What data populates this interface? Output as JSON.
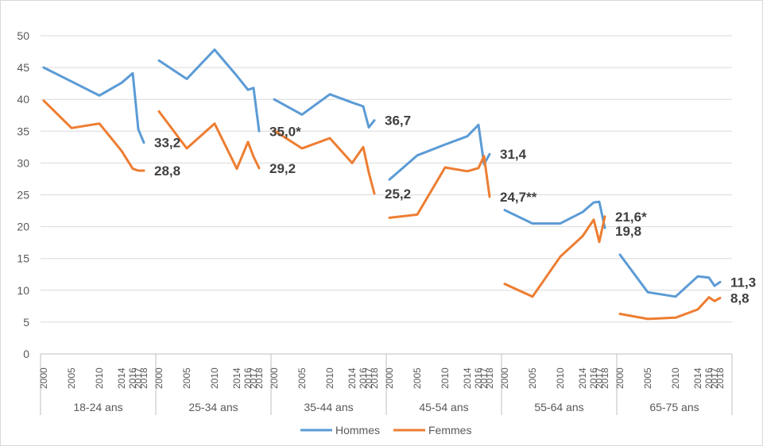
{
  "chart_data": {
    "type": "line",
    "title": "",
    "xlabel": "",
    "ylabel": "",
    "ylim": [
      0,
      50
    ],
    "yticks": [
      0,
      5,
      10,
      15,
      20,
      25,
      30,
      35,
      40,
      45,
      50
    ],
    "grid": true,
    "legend_position": "bottom",
    "colors": {
      "Hommes": "#5b9bd5",
      "Femmes": "#ed7d31"
    },
    "years": [
      "2000",
      "2005",
      "2010",
      "2014",
      "2016",
      "2017",
      "2018"
    ],
    "year_values": [
      2000,
      2005,
      2010,
      2014,
      2016,
      2017,
      2018
    ],
    "groups": [
      {
        "name": "18-24 ans",
        "series": [
          {
            "name": "Hommes",
            "values": [
              45.0,
              42.8,
              40.6,
              42.6,
              44.1,
              35.3,
              33.2
            ]
          },
          {
            "name": "Femmes",
            "values": [
              39.8,
              35.5,
              36.2,
              31.9,
              29.1,
              28.8,
              28.8
            ]
          }
        ],
        "labels": [
          {
            "series": "Hommes",
            "text": "33,2"
          },
          {
            "series": "Femmes",
            "text": "28,8"
          }
        ]
      },
      {
        "name": "25-34 ans",
        "series": [
          {
            "name": "Hommes",
            "values": [
              46.1,
              43.2,
              47.8,
              43.7,
              41.5,
              41.8,
              35.0
            ]
          },
          {
            "name": "Femmes",
            "values": [
              38.1,
              32.3,
              36.2,
              29.1,
              33.3,
              31.0,
              29.2
            ]
          }
        ],
        "labels": [
          {
            "series": "Hommes",
            "text": "35,0*"
          },
          {
            "series": "Femmes",
            "text": "29,2"
          }
        ]
      },
      {
        "name": "35-44 ans",
        "series": [
          {
            "name": "Hommes",
            "values": [
              40.0,
              37.6,
              40.8,
              39.5,
              38.9,
              35.6,
              36.7
            ]
          },
          {
            "name": "Femmes",
            "values": [
              35.1,
              32.3,
              33.9,
              30.0,
              32.5,
              28.5,
              25.2
            ]
          }
        ],
        "labels": [
          {
            "series": "Hommes",
            "text": "36,7"
          },
          {
            "series": "Femmes",
            "text": "25,2"
          }
        ]
      },
      {
        "name": "45-54 ans",
        "series": [
          {
            "name": "Hommes",
            "values": [
              27.4,
              31.2,
              32.9,
              34.2,
              36.0,
              29.8,
              31.4
            ]
          },
          {
            "name": "Femmes",
            "values": [
              21.4,
              21.9,
              29.3,
              28.7,
              29.2,
              31.1,
              24.7
            ]
          }
        ],
        "labels": [
          {
            "series": "Hommes",
            "text": "31,4"
          },
          {
            "series": "Femmes",
            "text": "24,7**"
          }
        ]
      },
      {
        "name": "55-64 ans",
        "series": [
          {
            "name": "Hommes",
            "values": [
              22.6,
              20.5,
              20.5,
              22.3,
              23.8,
              23.9,
              19.8
            ]
          },
          {
            "name": "Femmes",
            "values": [
              11.0,
              9.0,
              15.3,
              18.5,
              21.1,
              17.6,
              21.6
            ]
          }
        ],
        "labels": [
          {
            "series": "Femmes",
            "text": "21,6*"
          },
          {
            "series": "Hommes",
            "text": "19,8"
          }
        ]
      },
      {
        "name": "65-75 ans",
        "series": [
          {
            "name": "Hommes",
            "values": [
              15.6,
              9.7,
              9.0,
              12.2,
              12.0,
              10.7,
              11.3
            ]
          },
          {
            "name": "Femmes",
            "values": [
              6.3,
              5.5,
              5.7,
              7.0,
              8.9,
              8.3,
              8.8
            ]
          }
        ],
        "labels": [
          {
            "series": "Hommes",
            "text": "11,3"
          },
          {
            "series": "Femmes",
            "text": "8,8"
          }
        ]
      }
    ],
    "legend": [
      "Hommes",
      "Femmes"
    ]
  }
}
